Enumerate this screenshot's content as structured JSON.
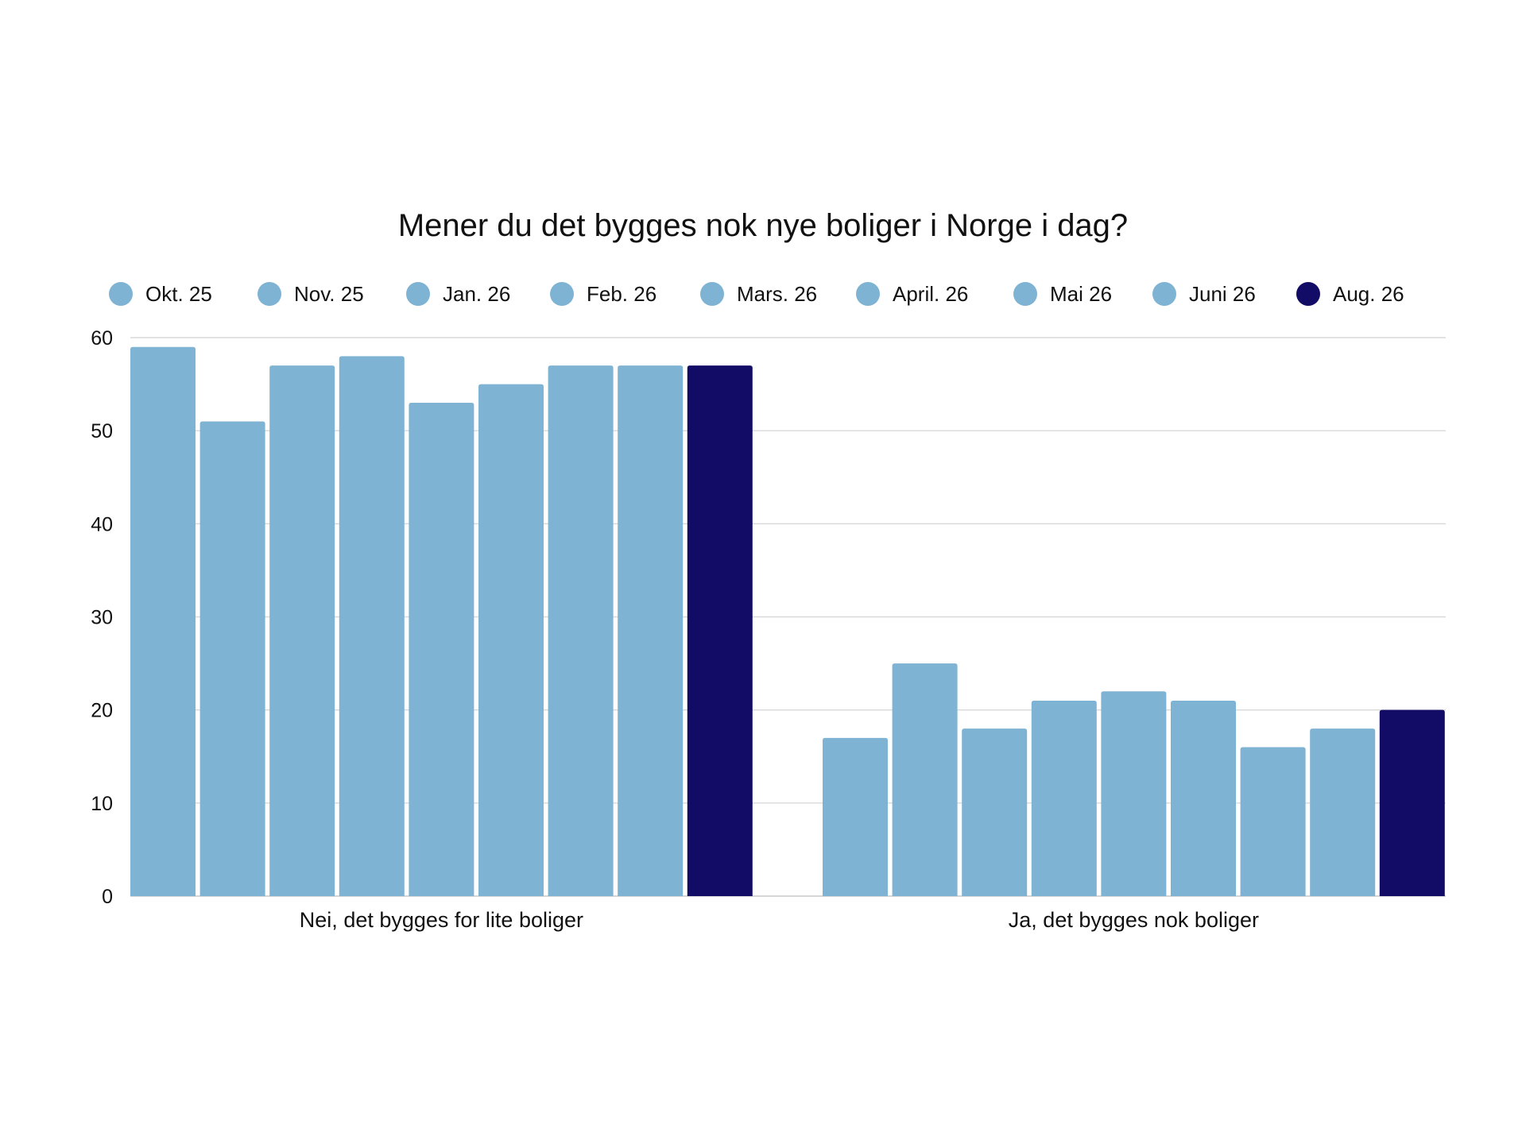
{
  "chart_data": {
    "type": "bar",
    "title": "Mener du det bygges nok nye boliger i Norge i dag?",
    "categories": [
      "Nei, det bygges for lite boliger",
      "Ja, det bygges nok boliger"
    ],
    "series": [
      {
        "name": "Okt. 25",
        "color": "#7fb3d3",
        "values": [
          59,
          17
        ]
      },
      {
        "name": "Nov. 25",
        "color": "#7fb3d3",
        "values": [
          51,
          25
        ]
      },
      {
        "name": "Jan. 26",
        "color": "#7fb3d3",
        "values": [
          57,
          18
        ]
      },
      {
        "name": "Feb. 26",
        "color": "#7fb3d3",
        "values": [
          58,
          21
        ]
      },
      {
        "name": "Mars. 26",
        "color": "#7fb3d3",
        "values": [
          53,
          22
        ]
      },
      {
        "name": "April. 26",
        "color": "#7fb3d3",
        "values": [
          55,
          21
        ]
      },
      {
        "name": "Mai 26",
        "color": "#7fb3d3",
        "values": [
          57,
          16
        ]
      },
      {
        "name": "Juni 26",
        "color": "#7fb3d3",
        "values": [
          57,
          18
        ]
      },
      {
        "name": "Aug. 26",
        "color": "#120c66",
        "values": [
          57,
          20
        ]
      }
    ],
    "yticks": [
      0,
      10,
      20,
      30,
      40,
      50,
      60
    ],
    "ylim": [
      0,
      60
    ],
    "grid": true,
    "legend": "top"
  }
}
